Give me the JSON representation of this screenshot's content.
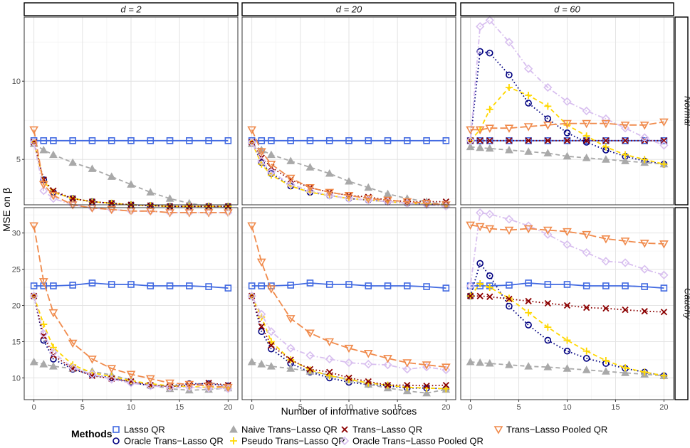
{
  "chart_data": {
    "type": "line",
    "facet_columns": [
      "d = 2",
      "d = 20",
      "d = 60"
    ],
    "facet_rows": [
      "Normal",
      "Cauchy"
    ],
    "xlabel": "Number of informative sources",
    "ylabel": "MSE on β",
    "x_ticks": [
      0,
      5,
      10,
      15,
      20
    ],
    "y_ticks": {
      "Normal": [
        5,
        10
      ],
      "Cauchy": [
        10,
        15,
        20,
        25,
        30
      ]
    },
    "ylim": {
      "Normal": [
        2.1,
        14.1
      ],
      "Cauchy": [
        7.0,
        33.5
      ]
    },
    "xlim": [
      -1,
      21
    ],
    "x": [
      0,
      1,
      2,
      4,
      6,
      8,
      10,
      12,
      14,
      16,
      18,
      20
    ],
    "legend_title": "Methods",
    "methods": [
      {
        "name": "Lasso QR",
        "color": "#4169e1",
        "shape": "square",
        "dash": "solid"
      },
      {
        "name": "Oracle Trans−Lasso QR",
        "color": "#000080",
        "shape": "circle",
        "dash": "dotted"
      },
      {
        "name": "Naive Trans−Lasso QR",
        "color": "#a9a9a9",
        "shape": "triangle",
        "dash": "dashed"
      },
      {
        "name": "Pseudo Trans−Lasso QR",
        "color": "#ffd700",
        "shape": "plus",
        "dash": "dashed"
      },
      {
        "name": "Trans−Lasso QR",
        "color": "#8b0000",
        "shape": "cross",
        "dash": "dotted"
      },
      {
        "name": "Oracle Trans−Lasso Pooled QR",
        "color": "#d8bfef",
        "shape": "diamond",
        "dash": "dotdash"
      },
      {
        "name": "Trans−Lasso Pooled QR",
        "color": "#f08a4b",
        "shape": "triangle-down",
        "dash": "longdash"
      }
    ],
    "panels": [
      {
        "col": 0,
        "row": 0,
        "series": [
          {
            "name": "Lasso QR",
            "values": [
              6.2,
              6.2,
              6.2,
              6.2,
              6.2,
              6.2,
              6.2,
              6.2,
              6.2,
              6.2,
              6.2,
              6.2
            ]
          },
          {
            "name": "Oracle Trans−Lasso QR",
            "values": [
              6.1,
              3.7,
              2.9,
              2.5,
              2.3,
              2.2,
              2.1,
              2.05,
              2.0,
              2.0,
              2.0,
              2.0
            ]
          },
          {
            "name": "Naive Trans−Lasso QR",
            "values": [
              6.0,
              5.6,
              5.3,
              4.8,
              4.4,
              3.9,
              3.4,
              2.9,
              2.5,
              2.2,
              2.0,
              1.9
            ]
          },
          {
            "name": "Pseudo Trans−Lasso QR",
            "values": [
              6.1,
              3.6,
              2.9,
              2.5,
              2.3,
              2.2,
              2.1,
              2.05,
              2.0,
              2.0,
              2.0,
              2.0
            ]
          },
          {
            "name": "Trans−Lasso QR",
            "values": [
              6.1,
              3.7,
              3.0,
              2.5,
              2.3,
              2.2,
              2.1,
              2.05,
              2.0,
              2.0,
              2.0,
              2.0
            ]
          },
          {
            "name": "Oracle Trans−Lasso Pooled QR",
            "values": [
              6.1,
              3.0,
              2.5,
              2.1,
              1.9,
              1.8,
              1.7,
              1.7,
              1.6,
              1.6,
              1.6,
              1.6
            ]
          },
          {
            "name": "Trans−Lasso Pooled QR",
            "values": [
              6.9,
              3.4,
              2.7,
              2.1,
              1.9,
              1.8,
              1.7,
              1.7,
              1.6,
              1.6,
              1.6,
              1.6
            ]
          }
        ]
      },
      {
        "col": 1,
        "row": 0,
        "series": [
          {
            "name": "Lasso QR",
            "values": [
              6.2,
              6.2,
              6.2,
              6.2,
              6.2,
              6.2,
              6.2,
              6.2,
              6.2,
              6.2,
              6.2,
              6.2
            ]
          },
          {
            "name": "Oracle Trans−Lasso QR",
            "values": [
              6.1,
              4.8,
              4.1,
              3.3,
              2.9,
              2.7,
              2.5,
              2.4,
              2.3,
              2.2,
              2.15,
              2.1
            ]
          },
          {
            "name": "Naive Trans−Lasso QR",
            "values": [
              6.0,
              5.6,
              5.3,
              4.9,
              4.5,
              4.1,
              3.6,
              3.2,
              2.8,
              2.5,
              2.3,
              2.1
            ]
          },
          {
            "name": "Pseudo Trans−Lasso QR",
            "values": [
              6.1,
              4.7,
              4.0,
              3.3,
              2.9,
              2.7,
              2.5,
              2.4,
              2.3,
              2.2,
              2.15,
              2.1
            ]
          },
          {
            "name": "Trans−Lasso QR",
            "values": [
              6.1,
              5.1,
              4.5,
              3.7,
              3.2,
              2.9,
              2.7,
              2.6,
              2.4,
              2.3,
              2.3,
              2.3
            ]
          },
          {
            "name": "Oracle Trans−Lasso Pooled QR",
            "values": [
              6.1,
              4.9,
              4.2,
              3.4,
              3.0,
              2.7,
              2.5,
              2.4,
              2.3,
              2.2,
              2.1,
              2.0
            ]
          },
          {
            "name": "Trans−Lasso Pooled QR",
            "values": [
              6.9,
              5.5,
              4.7,
              3.8,
              3.2,
              2.9,
              2.7,
              2.5,
              2.4,
              2.3,
              2.2,
              2.1
            ]
          }
        ]
      },
      {
        "col": 2,
        "row": 0,
        "series": [
          {
            "name": "Lasso QR",
            "values": [
              6.2,
              6.2,
              6.2,
              6.2,
              6.2,
              6.2,
              6.2,
              6.2,
              6.2,
              6.2,
              6.2,
              6.2
            ]
          },
          {
            "name": "Oracle Trans−Lasso QR",
            "values": [
              6.2,
              11.9,
              11.8,
              10.4,
              8.6,
              7.6,
              6.7,
              6.1,
              5.6,
              5.2,
              4.9,
              4.7
            ]
          },
          {
            "name": "Naive Trans−Lasso QR",
            "values": [
              5.8,
              5.75,
              5.7,
              5.6,
              5.5,
              5.4,
              5.2,
              5.1,
              5.0,
              4.9,
              4.8,
              4.7
            ]
          },
          {
            "name": "Pseudo Trans−Lasso QR",
            "values": [
              6.2,
              6.9,
              8.2,
              9.6,
              9.1,
              8.4,
              7.2,
              6.5,
              5.8,
              5.3,
              5.0,
              4.7
            ]
          },
          {
            "name": "Trans−Lasso QR",
            "values": [
              6.2,
              6.2,
              6.2,
              6.2,
              6.2,
              6.2,
              6.2,
              6.2,
              6.2,
              6.2,
              6.2,
              6.2
            ]
          },
          {
            "name": "Oracle Trans−Lasso Pooled QR",
            "values": [
              6.2,
              13.5,
              13.9,
              12.5,
              10.8,
              9.6,
              8.7,
              8.1,
              7.6,
              7.0,
              6.4,
              5.9
            ]
          },
          {
            "name": "Trans−Lasso Pooled QR",
            "values": [
              6.9,
              6.9,
              7.0,
              7.0,
              7.1,
              7.2,
              7.3,
              7.3,
              7.3,
              7.2,
              7.2,
              7.4
            ]
          }
        ]
      },
      {
        "col": 0,
        "row": 1,
        "series": [
          {
            "name": "Lasso QR",
            "values": [
              22.7,
              22.7,
              22.7,
              22.8,
              23.1,
              22.9,
              22.9,
              22.7,
              22.7,
              22.7,
              22.6,
              22.4
            ]
          },
          {
            "name": "Oracle Trans−Lasso QR",
            "values": [
              21.3,
              15.2,
              12.6,
              11.2,
              10.4,
              10.0,
              9.4,
              8.9,
              8.9,
              9.2,
              9.2,
              8.9
            ]
          },
          {
            "name": "Naive Trans−Lasso QR",
            "values": [
              12.2,
              11.9,
              11.6,
              11.3,
              10.9,
              10.4,
              9.7,
              9.0,
              8.5,
              8.3,
              8.4,
              8.6
            ]
          },
          {
            "name": "Pseudo Trans−Lasso QR",
            "values": [
              21.3,
              17.4,
              14.2,
              11.8,
              10.7,
              10.2,
              9.6,
              9.2,
              8.9,
              8.8,
              8.7,
              8.7
            ]
          },
          {
            "name": "Trans−Lasso QR",
            "values": [
              21.3,
              15.8,
              13.1,
              11.3,
              10.3,
              9.9,
              9.5,
              9.0,
              8.8,
              9.0,
              9.3,
              9.0
            ]
          },
          {
            "name": "Oracle Trans−Lasso Pooled QR",
            "values": [
              21.3,
              16.1,
              13.5,
              11.4,
              10.5,
              9.8,
              9.3,
              8.9,
              8.7,
              8.7,
              8.6,
              8.5
            ]
          },
          {
            "name": "Trans−Lasso Pooled QR",
            "values": [
              31.0,
              23.3,
              19.0,
              14.8,
              12.6,
              11.3,
              10.5,
              9.9,
              9.3,
              9.1,
              8.9,
              8.7
            ]
          }
        ]
      },
      {
        "col": 1,
        "row": 1,
        "series": [
          {
            "name": "Lasso QR",
            "values": [
              22.7,
              22.7,
              22.7,
              22.8,
              23.1,
              22.9,
              22.9,
              22.7,
              22.7,
              22.7,
              22.6,
              22.4
            ]
          },
          {
            "name": "Oracle Trans−Lasso QR",
            "values": [
              21.3,
              16.4,
              14.0,
              12.0,
              10.8,
              10.0,
              9.4,
              9.1,
              8.9,
              8.6,
              8.6,
              8.5
            ]
          },
          {
            "name": "Naive Trans−Lasso QR",
            "values": [
              12.2,
              11.9,
              11.6,
              11.3,
              10.9,
              10.4,
              9.7,
              9.1,
              8.6,
              8.2,
              7.9,
              8.4
            ]
          },
          {
            "name": "Pseudo Trans−Lasso QR",
            "values": [
              21.3,
              18.4,
              15.0,
              12.5,
              11.1,
              10.3,
              9.8,
              9.3,
              9.0,
              8.7,
              8.6,
              8.5
            ]
          },
          {
            "name": "Trans−Lasso QR",
            "values": [
              21.3,
              17.1,
              14.5,
              12.5,
              11.2,
              10.8,
              10.0,
              9.5,
              9.0,
              9.0,
              8.9,
              9.0
            ]
          },
          {
            "name": "Oracle Trans−Lasso Pooled QR",
            "values": [
              21.3,
              18.8,
              16.4,
              14.1,
              13.1,
              12.6,
              12.1,
              11.9,
              11.8,
              11.2,
              11.5,
              11.1
            ]
          },
          {
            "name": "Trans−Lasso Pooled QR",
            "values": [
              31.0,
              26.0,
              22.3,
              18.2,
              16.2,
              15.0,
              14.1,
              13.4,
              12.7,
              12.1,
              11.8,
              11.5
            ]
          }
        ]
      },
      {
        "col": 2,
        "row": 1,
        "series": [
          {
            "name": "Lasso QR",
            "values": [
              22.7,
              22.7,
              22.7,
              22.8,
              23.1,
              22.9,
              22.9,
              22.7,
              22.7,
              22.7,
              22.6,
              22.4
            ]
          },
          {
            "name": "Oracle Trans−Lasso QR",
            "values": [
              21.3,
              25.8,
              24.1,
              19.9,
              17.3,
              15.2,
              13.7,
              12.7,
              12.0,
              11.3,
              10.8,
              10.3
            ]
          },
          {
            "name": "Naive Trans−Lasso QR",
            "values": [
              12.2,
              12.1,
              12.0,
              11.8,
              11.6,
              11.5,
              11.3,
              11.1,
              10.9,
              10.7,
              10.5,
              10.3
            ]
          },
          {
            "name": "Pseudo Trans−Lasso QR",
            "values": [
              21.3,
              23.0,
              22.5,
              21.0,
              19.0,
              17.0,
              15.2,
              13.7,
              12.4,
              11.4,
              10.8,
              10.3
            ]
          },
          {
            "name": "Trans−Lasso QR",
            "values": [
              21.3,
              21.3,
              21.2,
              20.9,
              20.6,
              20.3,
              20.0,
              19.7,
              19.6,
              19.4,
              19.2,
              19.1
            ]
          },
          {
            "name": "Oracle Trans−Lasso Pooled QR",
            "values": [
              22.7,
              32.8,
              32.6,
              31.9,
              31.0,
              29.8,
              28.4,
              27.3,
              26.1,
              25.9,
              25.0,
              24.2
            ]
          },
          {
            "name": "Trans−Lasso Pooled QR",
            "values": [
              31.1,
              30.9,
              30.6,
              30.4,
              30.6,
              30.4,
              30.2,
              29.8,
              29.2,
              28.9,
              28.6,
              28.5
            ]
          }
        ]
      }
    ]
  }
}
